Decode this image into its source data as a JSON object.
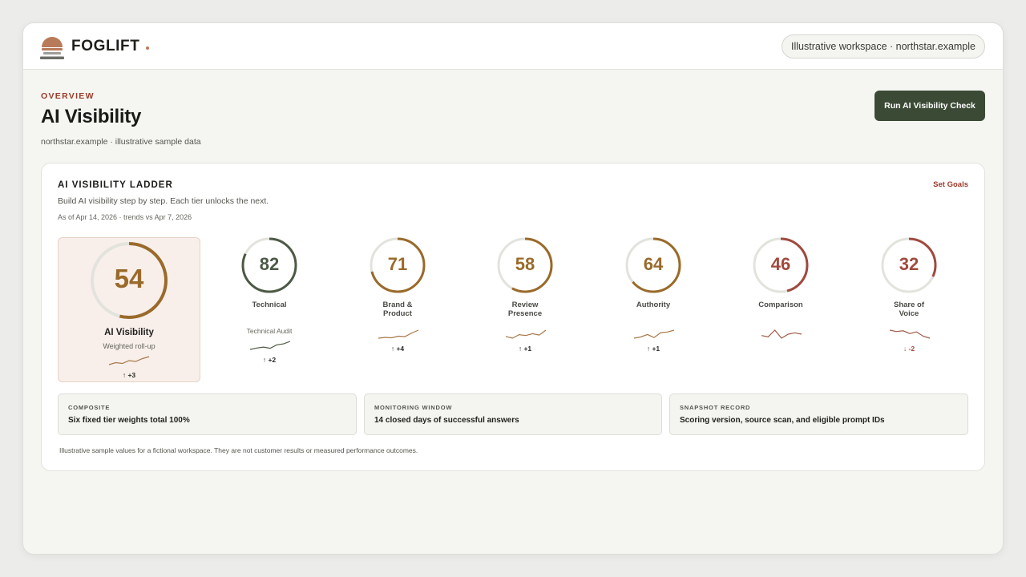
{
  "colors": {
    "brand_terracotta": "#b97a5a",
    "eyebrow_red": "#9b3b2a",
    "button_green": "#3b4a35",
    "gold": "#9a6a2a",
    "green_ring": "#4c5a45",
    "red_ring": "#a04a3e",
    "track": "#e3e3dd",
    "hero_bg": "#f8efeb"
  },
  "header": {
    "logo_icon": "sun-over-stack-logo",
    "brand_name": "FOGLIFT",
    "workspace_pill": "Illustrative workspace · northstar.example"
  },
  "page": {
    "eyebrow": "OVERVIEW",
    "title": "AI Visibility",
    "subtitle": "northstar.example · illustrative sample data",
    "run_button_label": "Run AI Visibility Check"
  },
  "ladder": {
    "title": "AI VISIBILITY LADDER",
    "description": "Build AI visibility step by step. Each tier unlocks the next.",
    "as_of": "As of Apr 14, 2026 · trends vs Apr 7, 2026",
    "set_goals_label": "Set Goals",
    "hero": {
      "score": "54",
      "score_value": 54,
      "label": "AI Visibility",
      "sublabel": "Weighted roll-up",
      "trend": "↑ +3",
      "trend_series": [
        2,
        3,
        2.6,
        4,
        3.6,
        5,
        6
      ]
    },
    "tiers": [
      {
        "score": "82",
        "score_value": 82,
        "label": "Technical",
        "sublabel": "Technical Audit",
        "trend": "↑ +2",
        "color": "green",
        "trend_series": [
          2,
          2.6,
          3,
          2.5,
          4,
          4.4,
          5.5
        ]
      },
      {
        "score": "71",
        "score_value": 71,
        "label": "Brand &\nProduct",
        "sublabel": "",
        "trend": "↑ +4",
        "color": "gold",
        "trend_series": [
          2,
          2.4,
          2.2,
          3,
          2.8,
          4.6,
          6
        ]
      },
      {
        "score": "58",
        "score_value": 58,
        "label": "Review\nPresence",
        "sublabel": "",
        "trend": "↑ +1",
        "color": "gold",
        "trend_series": [
          3,
          2.6,
          3.4,
          3.2,
          3.6,
          3.3,
          4.4
        ]
      },
      {
        "score": "64",
        "score_value": 64,
        "label": "Authority",
        "sublabel": "",
        "trend": "↑ +1",
        "color": "gold",
        "trend_series": [
          3,
          3.2,
          3.6,
          3.1,
          3.9,
          4,
          4.3
        ]
      },
      {
        "score": "46",
        "score_value": 46,
        "label": "Comparison",
        "sublabel": "",
        "trend": "",
        "color": "red",
        "trend_series": [
          3.4,
          3.3,
          3.8,
          3.2,
          3.5,
          3.6,
          3.5
        ]
      },
      {
        "score": "32",
        "score_value": 32,
        "label": "Share of\nVoice",
        "sublabel": "",
        "trend": "↓ -2",
        "color": "red",
        "trend_series": [
          5,
          4.6,
          4.8,
          4,
          4.5,
          3.2,
          2.6
        ]
      }
    ],
    "info_boxes": [
      {
        "eyebrow": "COMPOSITE",
        "text": "Six fixed tier weights total 100%"
      },
      {
        "eyebrow": "MONITORING WINDOW",
        "text": "14 closed days of successful answers"
      },
      {
        "eyebrow": "SNAPSHOT RECORD",
        "text": "Scoring version, source scan, and eligible prompt IDs"
      }
    ],
    "disclaimer": "Illustrative sample values for a fictional workspace. They are not customer results or measured performance outcomes."
  }
}
